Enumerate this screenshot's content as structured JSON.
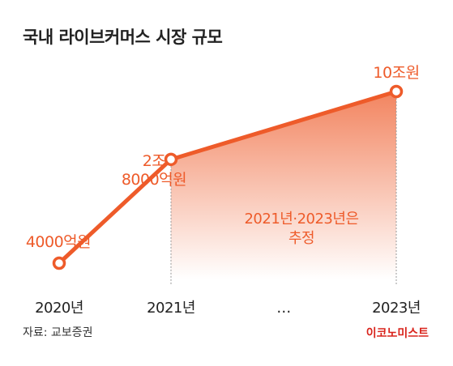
{
  "header": {
    "title": "국내 라이브커머스 시장 규모"
  },
  "footer": {
    "source": "자료: 교보증권",
    "brand": "이코노미스트"
  },
  "colors": {
    "accent": "#ee5b2a",
    "text": "#222222",
    "brand": "#d9241c"
  },
  "chart_data": {
    "type": "line",
    "title": "국내 라이브커머스 시장 규모",
    "categories": [
      "2020년",
      "2021년",
      "…",
      "2023년"
    ],
    "series": [
      {
        "values": [
          4000,
          28000,
          null,
          100000
        ],
        "unit": "억원"
      }
    ],
    "value_labels": [
      [
        "4000억원"
      ],
      [
        "2조",
        "8000억원"
      ],
      [],
      [
        "10조원"
      ]
    ],
    "annotation": [
      "2021년·2023년은",
      "추정"
    ],
    "ylim": [
      0,
      100000
    ],
    "grid": false,
    "shaded_area_after": "2021년"
  }
}
